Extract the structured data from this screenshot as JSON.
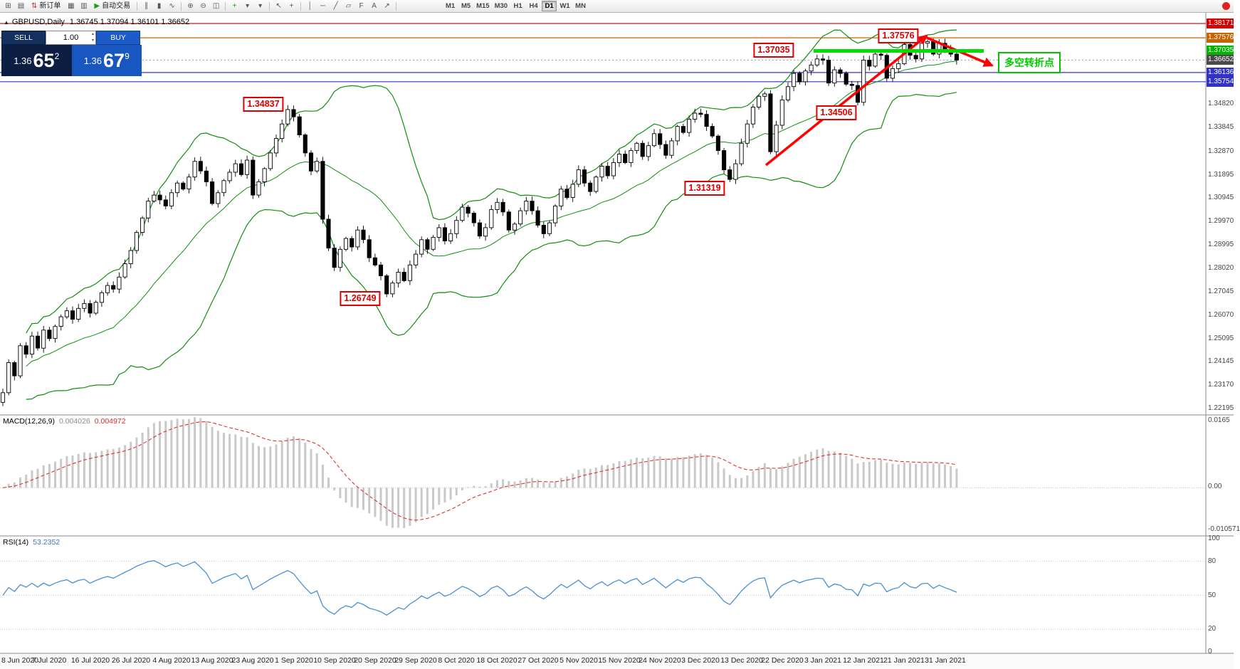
{
  "toolbar": {
    "icons": [
      {
        "name": "new-chart-icon",
        "glyph": "⊞"
      },
      {
        "name": "profiles-icon",
        "glyph": "▤"
      },
      {
        "name": "new-order-button",
        "glyph": "⇅",
        "glyph_color": "#c03030",
        "label": "新订单"
      },
      {
        "name": "market-watch-icon",
        "glyph": "▦"
      },
      {
        "name": "data-window-icon",
        "glyph": "▥"
      },
      {
        "name": "autotrading-button",
        "glyph": "▶",
        "glyph_color": "#18a018",
        "label": "自动交易"
      },
      {
        "sep": true
      },
      {
        "name": "bar-chart-icon",
        "glyph": "∥"
      },
      {
        "name": "candlestick-chart-icon",
        "glyph": "▮"
      },
      {
        "name": "line-chart-icon",
        "glyph": "∿"
      },
      {
        "sep": true
      },
      {
        "name": "zoom-in-icon",
        "glyph": "⊕"
      },
      {
        "name": "zoom-out-icon",
        "glyph": "⊖"
      },
      {
        "name": "tile-windows-icon",
        "glyph": "◫"
      },
      {
        "sep": true
      },
      {
        "name": "indicators-icon",
        "glyph": "+",
        "glyph_color": "#18a018"
      },
      {
        "name": "indicators-dropdown-arrow",
        "glyph": "▾"
      },
      {
        "name": "periods-dropdown-icon",
        "glyph": "▾"
      },
      {
        "sep": true
      },
      {
        "name": "cursor-icon",
        "glyph": "↖"
      },
      {
        "name": "crosshair-icon",
        "glyph": "+"
      },
      {
        "sep": true
      },
      {
        "name": "vertical-line-icon",
        "glyph": "│"
      },
      {
        "name": "horizontal-line-icon",
        "glyph": "─"
      },
      {
        "name": "trendline-icon",
        "glyph": "╱"
      },
      {
        "name": "channel-icon",
        "glyph": "▱"
      },
      {
        "name": "fibonacci-icon",
        "glyph": "F"
      },
      {
        "name": "text-icon",
        "glyph": "A"
      },
      {
        "name": "arrow-tools-icon",
        "glyph": "↗"
      },
      {
        "sep": true
      }
    ],
    "timeframes": [
      "M1",
      "M5",
      "M15",
      "M30",
      "H1",
      "H4",
      "D1",
      "W1",
      "MN"
    ],
    "active_timeframe": "D1"
  },
  "chart_header": {
    "collapse_glyph": "▲",
    "symbol": "GBPUSD,Daily",
    "ohlc_text": "1.36745 1.37094 1.36101 1.36652"
  },
  "trade_panel": {
    "sell_label": "SELL",
    "buy_label": "BUY",
    "volume": "1.00",
    "spinner_up": "▴",
    "spinner_down": "▾",
    "sell_price_prefix": "1.36",
    "sell_price_big": "65",
    "sell_price_sup": "2",
    "buy_price_prefix": "1.36",
    "buy_price_big": "67",
    "buy_price_sup": "9"
  },
  "chart_data": {
    "type": "candlestick",
    "symbol": "GBPUSD",
    "timeframe": "Daily",
    "last_ohlc": {
      "open": "1.36745",
      "high": "1.37094",
      "low": "1.36101",
      "close": "1.36652"
    },
    "x_labels": [
      "8 Jun 2020",
      "7 Jul 2020",
      "16 Jul 2020",
      "26 Jul 2020",
      "4 Aug 2020",
      "13 Aug 2020",
      "23 Aug 2020",
      "1 Sep 2020",
      "10 Sep 2020",
      "20 Sep 2020",
      "29 Sep 2020",
      "8 Oct 2020",
      "18 Oct 2020",
      "27 Oct 2020",
      "5 Nov 2020",
      "15 Nov 2020",
      "24 Nov 2020",
      "3 Dec 2020",
      "13 Dec 2020",
      "22 Dec 2020",
      "3 Jan 2021",
      "12 Jan 2021",
      "21 Jan 2021",
      "31 Jan 2021"
    ],
    "y_ticks": [
      "1.34820",
      "1.33845",
      "1.32870",
      "1.31895",
      "1.30945",
      "1.29970",
      "1.28995",
      "1.28020",
      "1.27045",
      "1.26070",
      "1.25095",
      "1.24145",
      "1.23170",
      "1.22195"
    ],
    "highlighted_prices": [
      {
        "value": "1.38171",
        "color": "#d40000"
      },
      {
        "value": "1.37576",
        "color": "#c86400"
      },
      {
        "value": "1.37035",
        "color": "#00b400"
      },
      {
        "value": "1.36652",
        "color": "#4a4a4a"
      },
      {
        "value": "1.36136",
        "color": "#3232c8"
      },
      {
        "value": "1.35754",
        "color": "#3232c8"
      }
    ],
    "closes": [
      1.2285,
      1.241,
      1.2355,
      1.248,
      1.2445,
      1.252,
      1.247,
      1.2545,
      1.251,
      1.256,
      1.26,
      1.2625,
      1.259,
      1.2635,
      1.2655,
      1.2615,
      1.266,
      1.27,
      1.273,
      1.2715,
      1.2765,
      1.282,
      1.2875,
      1.295,
      1.301,
      1.308,
      1.3105,
      1.3085,
      1.306,
      1.3115,
      1.3155,
      1.313,
      1.318,
      1.3245,
      1.3205,
      1.316,
      1.307,
      1.3115,
      1.3165,
      1.32,
      1.3235,
      1.319,
      1.325,
      1.3105,
      1.316,
      1.3215,
      1.328,
      1.334,
      1.34,
      1.346,
      1.343,
      1.3355,
      1.328,
      1.3205,
      1.3245,
      1.3005,
      1.2885,
      1.2805,
      1.288,
      1.2925,
      1.289,
      1.296,
      1.292,
      1.2845,
      1.2815,
      1.277,
      1.2695,
      1.274,
      1.2785,
      1.275,
      1.2815,
      1.286,
      1.292,
      1.288,
      1.293,
      1.297,
      1.2915,
      1.2945,
      1.3,
      1.3055,
      1.303,
      1.299,
      1.2935,
      1.297,
      1.3045,
      1.3075,
      1.3035,
      1.296,
      1.2985,
      1.304,
      1.308,
      1.304,
      1.298,
      1.2945,
      1.299,
      1.306,
      1.313,
      1.3095,
      1.315,
      1.321,
      1.3155,
      1.312,
      1.318,
      1.3225,
      1.3185,
      1.324,
      1.3275,
      1.324,
      1.329,
      1.332,
      1.3265,
      1.331,
      1.336,
      1.3315,
      1.327,
      1.333,
      1.339,
      1.3365,
      1.342,
      1.3445,
      1.344,
      1.339,
      1.335,
      1.329,
      1.321,
      1.317,
      1.3235,
      1.332,
      1.34,
      1.347,
      1.3515,
      1.3525,
      1.3285,
      1.3395,
      1.35,
      1.3555,
      1.361,
      1.3575,
      1.362,
      1.3645,
      1.367,
      1.3665,
      1.357,
      1.3625,
      1.361,
      1.3565,
      1.356,
      1.349,
      1.3665,
      1.364,
      1.369,
      1.3685,
      1.359,
      1.363,
      1.365,
      1.373,
      1.3685,
      1.367,
      1.3735,
      1.3742,
      1.369,
      1.3735,
      1.371,
      1.369,
      1.36652
    ],
    "levels": [
      {
        "price": 1.38171,
        "color": "#b22222"
      },
      {
        "price": 1.37576,
        "color": "#c86400"
      },
      {
        "price": 1.36136,
        "color": "#3232c8"
      },
      {
        "price": 1.35754,
        "color": "#3232c8"
      }
    ],
    "bid_line": {
      "price": 1.36652,
      "color": "#999999"
    },
    "indicators": {
      "bollinger": {
        "period": 20,
        "deviation": 2,
        "color": "#0f8f0f"
      },
      "macd": {
        "title": "MACD(12,26,9)",
        "value_main": "0.004026",
        "value_signal": "0.004972",
        "axis_labels": [
          "0.0165",
          "0.00",
          "-0.010571"
        ]
      },
      "rsi": {
        "title": "RSI(14)",
        "value": "53.2352",
        "axis_labels": [
          "100",
          "80",
          "50",
          "20",
          "0"
        ]
      }
    },
    "annotations": [
      {
        "kind": "price-label",
        "text": "1.34837",
        "x": 370,
        "price": 1.3485
      },
      {
        "kind": "price-label",
        "text": "1.26749",
        "x": 506,
        "price": 1.268
      },
      {
        "kind": "price-label",
        "text": "1.31319",
        "x": 990,
        "price": 1.3138
      },
      {
        "kind": "price-label",
        "text": "1.34506",
        "x": 1175,
        "price": 1.3452
      },
      {
        "kind": "price-label",
        "text": "1.37035",
        "x": 1087,
        "price": 1.3712
      },
      {
        "kind": "price-label",
        "text": "1.37576",
        "x": 1262,
        "price": 1.377
      },
      {
        "kind": "text-box",
        "text": "多空转折点",
        "x": 1402,
        "price": 1.3664
      },
      {
        "kind": "arrow",
        "x1": 1076,
        "y1": 214,
        "x2": 1302,
        "y2": 32
      },
      {
        "kind": "arrow",
        "x1": 1302,
        "y1": 35,
        "x2": 1394,
        "y2": 74
      },
      {
        "kind": "hseg",
        "price": 1.37035,
        "x1": 1143,
        "x2": 1382,
        "color": "#00dd00"
      }
    ]
  }
}
